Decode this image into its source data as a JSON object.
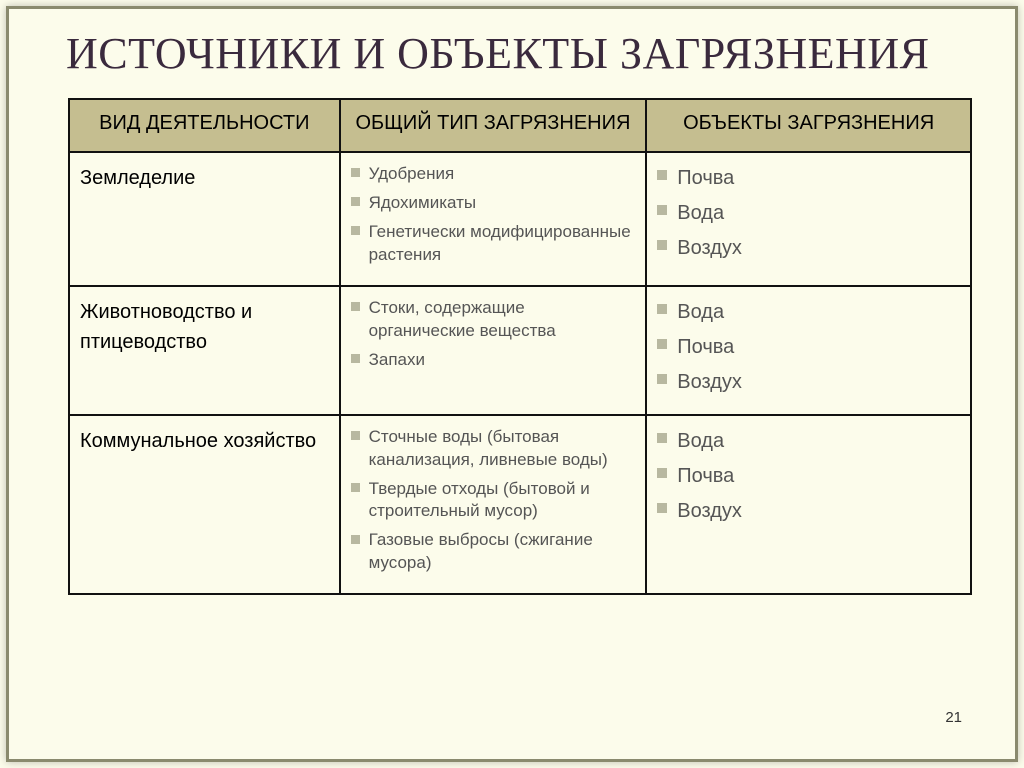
{
  "slide": {
    "title": "ИСТОЧНИКИ И ОБЪЕКТЫ ЗАГРЯЗНЕНИЯ",
    "page_number": "21",
    "background_color": "#fcfceb",
    "border_color": "#8a8a6e",
    "title_color": "#3a2a3d",
    "title_fontsize": 44
  },
  "table": {
    "header_bg": "#c5be90",
    "border_color": "#111111",
    "bullet_color": "#b8b8a0",
    "columns": [
      "ВИД ДЕЯТЕЛЬНОСТИ",
      "ОБЩИЙ ТИП ЗАГРЯЗНЕНИЯ",
      "ОБЪЕКТЫ ЗАГРЯЗНЕНИЯ"
    ],
    "rows": [
      {
        "activity": "Земледелие",
        "pollution_types": [
          "Удобрения",
          "Ядохимикаты",
          "Генетически модифицированные растения"
        ],
        "targets": [
          "Почва",
          "Вода",
          "Воздух"
        ]
      },
      {
        "activity": "Животноводство и птицеводство",
        "pollution_types": [
          "Стоки, содержащие органические вещества",
          "Запахи"
        ],
        "targets": [
          "Вода",
          "Почва",
          "Воздух"
        ]
      },
      {
        "activity": "Коммунальное хозяйство",
        "pollution_types": [
          "Сточные воды (бытовая канализация, ливневые воды)",
          "Твердые отходы (бытовой и строительный мусор)",
          "Газовые выбросы (сжигание мусора)"
        ],
        "targets": [
          "Вода",
          "Почва",
          "Воздух"
        ]
      }
    ]
  }
}
